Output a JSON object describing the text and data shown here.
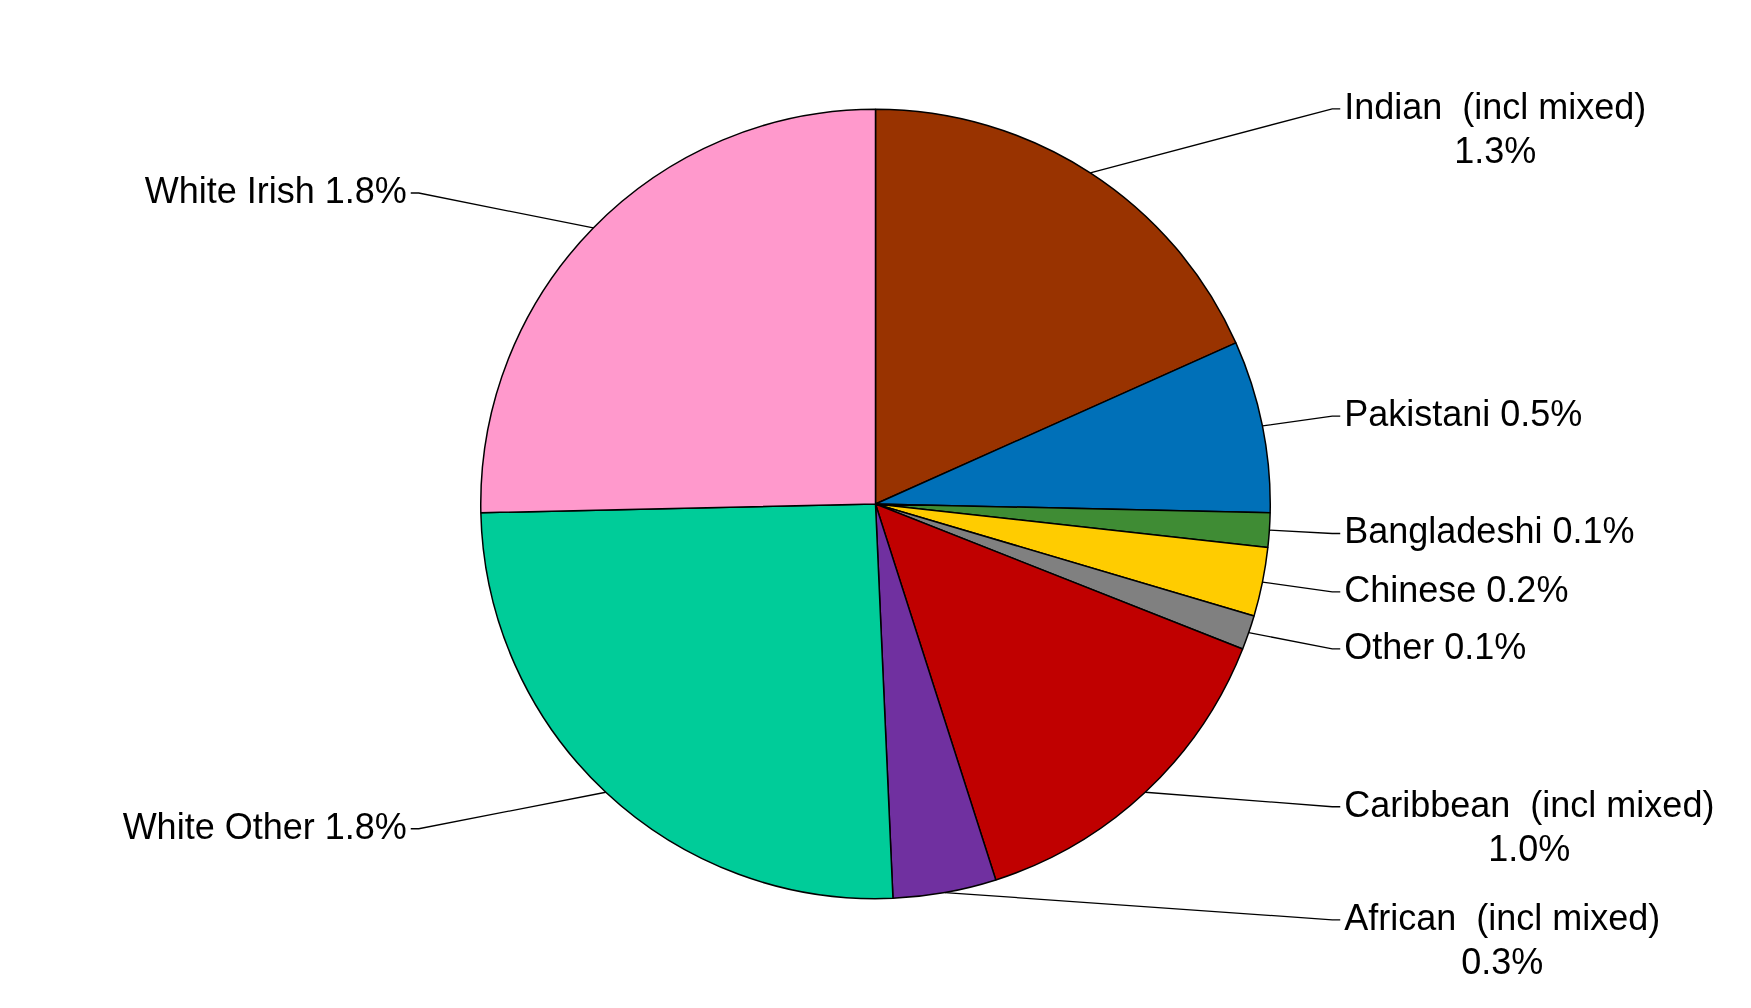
{
  "chart_data": {
    "type": "pie",
    "categories": [
      "Indian  (incl mixed)",
      "Pakistani",
      "Bangladeshi",
      "Chinese",
      "Other",
      "Caribbean  (incl mixed)",
      "African  (incl mixed)",
      "White Other",
      "White Irish"
    ],
    "values": [
      1.3,
      0.5,
      0.1,
      0.2,
      0.1,
      1.0,
      0.3,
      1.8,
      1.8
    ],
    "value_labels": [
      "1.3%",
      "0.5%",
      "0.1%",
      "0.2%",
      "0.1%",
      "1.0%",
      "0.3%",
      "1.8%",
      "1.8%"
    ],
    "colors": [
      "#993300",
      "#0070b8",
      "#3f8c34",
      "#ffcc00",
      "#808080",
      "#c00000",
      "#7030a0",
      "#00cc99",
      "#ff99cc"
    ],
    "legend": false
  }
}
